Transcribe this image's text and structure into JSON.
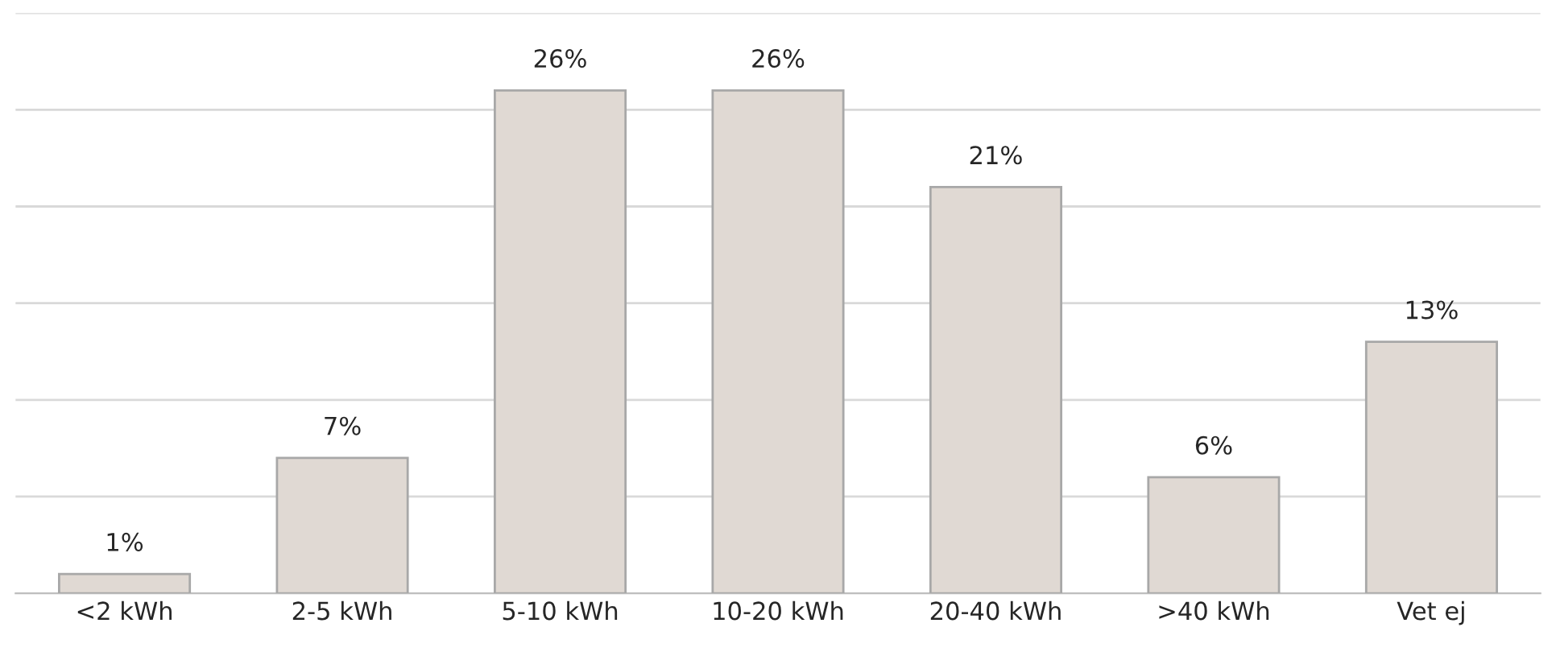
{
  "chart_data": {
    "type": "bar",
    "categories": [
      "<2 kWh",
      "2-5 kWh",
      "5-10 kWh",
      "10-20 kWh",
      "20-40 kWh",
      ">40 kWh",
      "Vet ej"
    ],
    "values": [
      1,
      7,
      26,
      26,
      21,
      6,
      13
    ],
    "value_labels": [
      "1%",
      "7%",
      "26%",
      "26%",
      "21%",
      "6%",
      "13%"
    ],
    "color": "#e0d9d3",
    "ylim": [
      0,
      30
    ],
    "yticks": [
      {
        "value": 0,
        "label": null
      },
      {
        "value": 5,
        "label": null
      },
      {
        "value": 10,
        "label": null
      },
      {
        "value": 15,
        "label": null
      },
      {
        "value": 20,
        "label": null
      },
      {
        "value": 25,
        "label": null
      },
      {
        "value": 30,
        "label": null
      }
    ],
    "grid": "y"
  }
}
